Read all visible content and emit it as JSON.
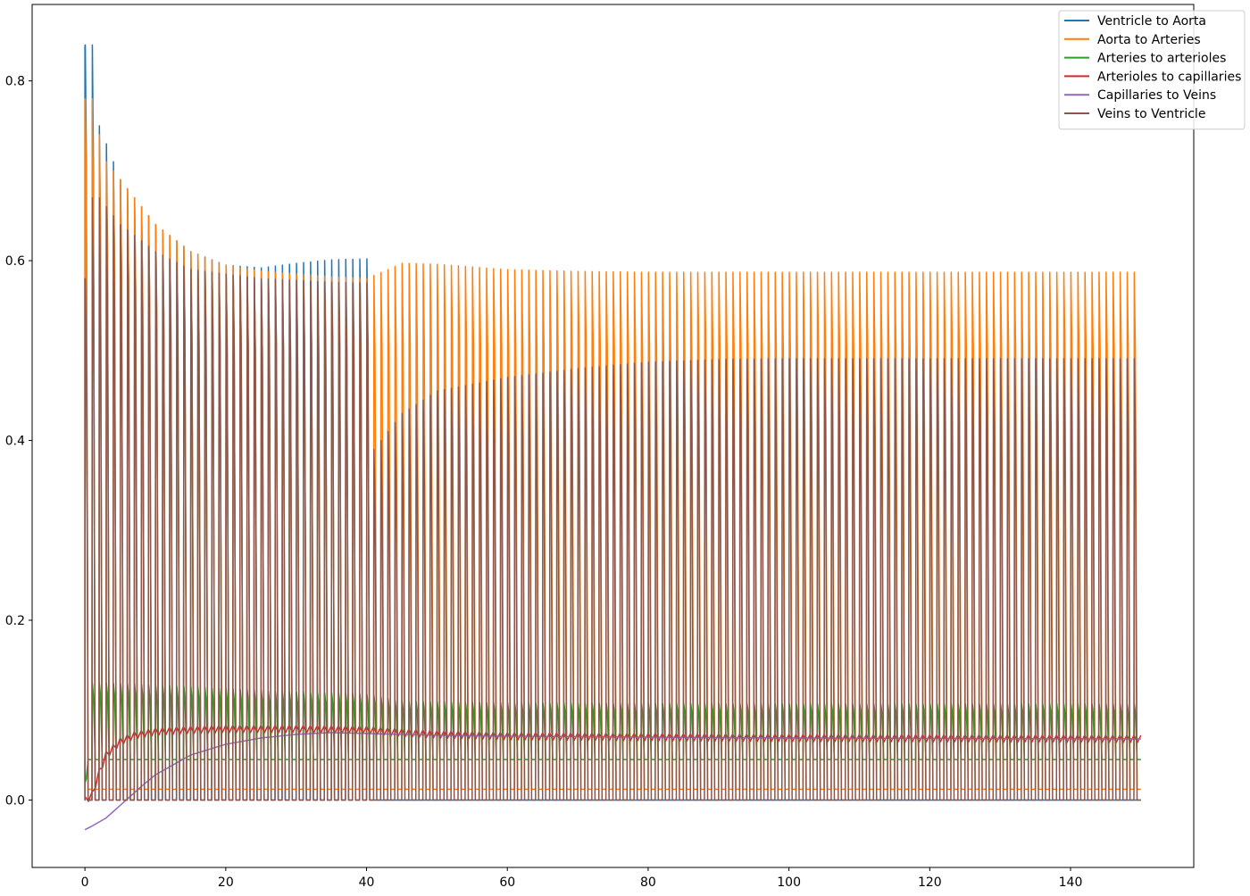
{
  "chart_data": {
    "type": "line",
    "title": "",
    "xlabel": "",
    "ylabel": "",
    "xlim": [
      -7.5,
      157.5
    ],
    "ylim": [
      -0.075,
      0.885
    ],
    "x_ticks": [
      0,
      20,
      40,
      60,
      80,
      100,
      120,
      140
    ],
    "y_ticks": [
      0.0,
      0.2,
      0.4,
      0.6,
      0.8
    ],
    "grid": false,
    "legend_position": "top-right",
    "x_sampling": {
      "start": 0,
      "end": 150,
      "cycle_period": 1.0
    },
    "series": [
      {
        "name": "Ventricle to Aorta",
        "color": "#1f77b4",
        "pattern": "pulsatile",
        "baseline": 0.0,
        "envelope": {
          "x": [
            1,
            2,
            5,
            10,
            15,
            20,
            25,
            30,
            35,
            40,
            40.5,
            150
          ],
          "y": [
            0.84,
            0.75,
            0.69,
            0.64,
            0.61,
            0.595,
            0.592,
            0.597,
            0.601,
            0.602,
            0.0,
            0.0
          ]
        }
      },
      {
        "name": "Aorta to Arteries",
        "color": "#ff7f0e",
        "pattern": "pulsatile",
        "baseline": 0.012,
        "envelope": {
          "x": [
            1,
            2,
            3,
            5,
            10,
            15,
            20,
            25,
            30,
            35,
            40,
            45,
            50,
            60,
            70,
            80,
            100,
            150
          ],
          "y": [
            0.78,
            0.74,
            0.71,
            0.69,
            0.64,
            0.61,
            0.595,
            0.588,
            0.585,
            0.582,
            0.58,
            0.597,
            0.596,
            0.59,
            0.588,
            0.587,
            0.587,
            0.587
          ]
        }
      },
      {
        "name": "Arteries to arterioles",
        "color": "#2ca02c",
        "pattern": "pulsatile",
        "baseline": 0.045,
        "envelope": {
          "x": [
            0,
            1,
            5,
            10,
            20,
            30,
            40,
            45,
            60,
            100,
            150
          ],
          "y": [
            0.02,
            0.13,
            0.13,
            0.128,
            0.124,
            0.12,
            0.118,
            0.11,
            0.108,
            0.107,
            0.107
          ]
        }
      },
      {
        "name": "Arterioles to capillaries",
        "color": "#d62728",
        "pattern": "smooth",
        "ripple": 0.004,
        "x": [
          0,
          1,
          2,
          3,
          5,
          7,
          10,
          15,
          20,
          30,
          40,
          45,
          50,
          60,
          80,
          100,
          150
        ],
        "y": [
          0.0,
          0.005,
          0.03,
          0.05,
          0.065,
          0.072,
          0.076,
          0.078,
          0.079,
          0.079,
          0.078,
          0.075,
          0.073,
          0.071,
          0.07,
          0.069,
          0.068
        ]
      },
      {
        "name": "Capillaries to Veins",
        "color": "#9467bd",
        "pattern": "smooth",
        "ripple": 0.0,
        "x": [
          0,
          1,
          3,
          5,
          8,
          10,
          15,
          20,
          25,
          30,
          35,
          40,
          45,
          50,
          60,
          80,
          100,
          150
        ],
        "y": [
          -0.033,
          -0.029,
          -0.02,
          -0.006,
          0.015,
          0.028,
          0.05,
          0.062,
          0.069,
          0.073,
          0.075,
          0.074,
          0.073,
          0.072,
          0.071,
          0.07,
          0.069,
          0.068
        ]
      },
      {
        "name": "Veins to Ventricle",
        "color": "#8c564b",
        "pattern": "pulsatile",
        "baseline": 0.0,
        "envelope": {
          "x": [
            0,
            1,
            2,
            5,
            10,
            15,
            20,
            25,
            30,
            35,
            40,
            41,
            45,
            50,
            60,
            70,
            80,
            90,
            100,
            150
          ],
          "y": [
            0.58,
            0.67,
            0.67,
            0.64,
            0.61,
            0.59,
            0.585,
            0.58,
            0.578,
            0.576,
            0.575,
            0.39,
            0.43,
            0.455,
            0.47,
            0.48,
            0.487,
            0.49,
            0.491,
            0.491
          ]
        },
        "secondary_envelope": {
          "x": [
            1,
            2,
            5,
            10,
            15,
            20,
            25,
            30,
            35,
            40,
            41,
            45,
            50,
            60,
            80,
            100,
            150
          ],
          "y": [
            0.32,
            0.29,
            0.27,
            0.26,
            0.25,
            0.245,
            0.24,
            0.238,
            0.237,
            0.236,
            0.18,
            0.178,
            0.177,
            0.176,
            0.175,
            0.174,
            0.174
          ]
        }
      }
    ]
  }
}
